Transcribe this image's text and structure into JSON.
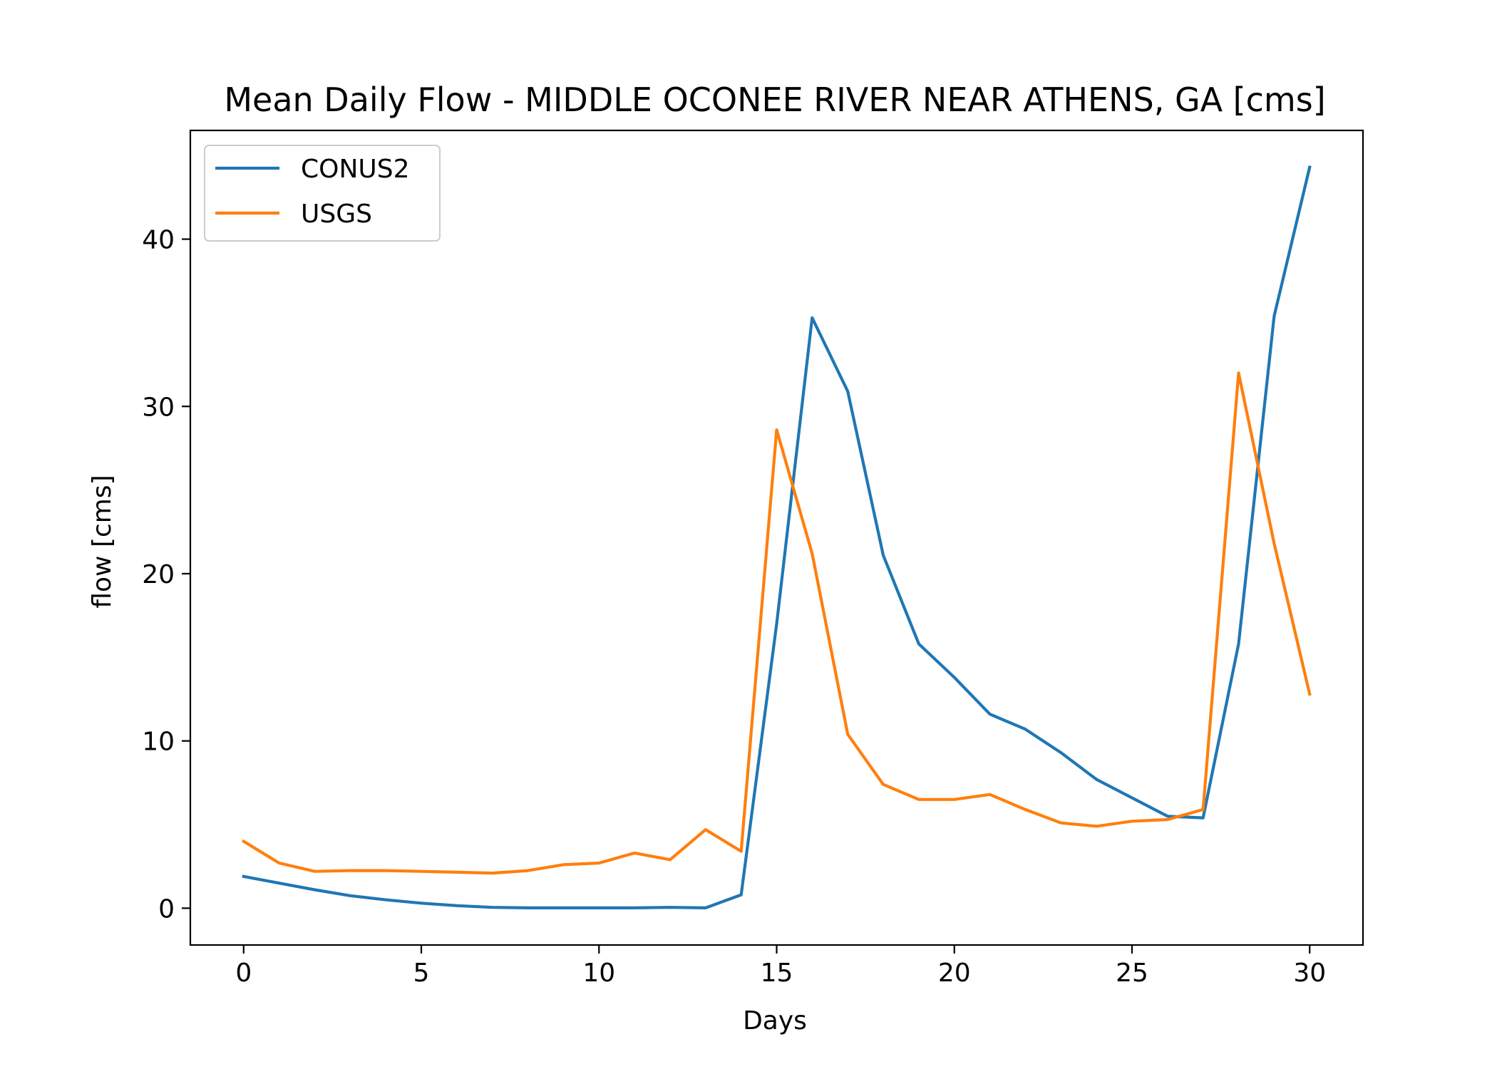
{
  "chart_data": {
    "type": "line",
    "title": "Mean Daily Flow - MIDDLE OCONEE RIVER NEAR ATHENS, GA [cms]",
    "xlabel": "Days",
    "ylabel": "flow [cms]",
    "xlim": [
      -1.5,
      31.5
    ],
    "ylim": [
      -2.2,
      46.5
    ],
    "xticks": [
      0,
      5,
      10,
      15,
      20,
      25,
      30
    ],
    "yticks": [
      0,
      10,
      20,
      30,
      40
    ],
    "grid": false,
    "legend_position": "top-left",
    "x": [
      0,
      1,
      2,
      3,
      4,
      5,
      6,
      7,
      8,
      9,
      10,
      11,
      12,
      13,
      14,
      15,
      16,
      17,
      18,
      19,
      20,
      21,
      22,
      23,
      24,
      25,
      26,
      27,
      28,
      29,
      30
    ],
    "series": [
      {
        "name": "CONUS2",
        "color": "#1f77b4",
        "values": [
          1.9,
          1.5,
          1.1,
          0.75,
          0.5,
          0.3,
          0.15,
          0.05,
          0.02,
          0.02,
          0.02,
          0.02,
          0.05,
          0.02,
          0.8,
          17.0,
          35.3,
          30.9,
          21.1,
          15.8,
          13.8,
          11.6,
          10.7,
          9.3,
          7.7,
          6.6,
          5.5,
          5.4,
          15.8,
          35.4,
          44.3
        ]
      },
      {
        "name": "USGS",
        "color": "#ff7f0e",
        "values": [
          4.0,
          2.7,
          2.2,
          2.25,
          2.25,
          2.2,
          2.15,
          2.1,
          2.25,
          2.6,
          2.7,
          3.3,
          2.9,
          4.7,
          3.4,
          28.6,
          21.2,
          10.4,
          7.4,
          6.5,
          6.5,
          6.8,
          5.9,
          5.1,
          4.9,
          5.2,
          5.3,
          5.9,
          32.0,
          21.8,
          12.8
        ]
      }
    ]
  }
}
